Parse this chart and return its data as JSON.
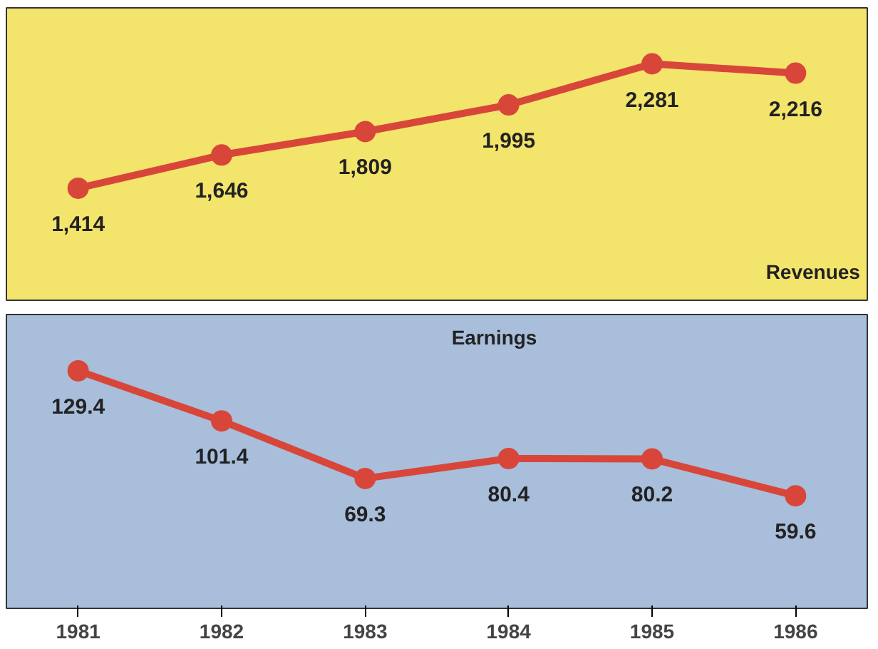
{
  "chart_data": [
    {
      "type": "line",
      "title": "Revenues",
      "categories": [
        "1981",
        "1982",
        "1983",
        "1984",
        "1985",
        "1986"
      ],
      "values": [
        1414,
        1646,
        1809,
        1995,
        2281,
        2216
      ],
      "value_labels": [
        "1,414",
        "1,646",
        "1,809",
        "1,995",
        "2,281",
        "2,216"
      ],
      "color": "#d8463a",
      "marker": "circle",
      "line_style": "solid",
      "tick_labels": false
    },
    {
      "type": "line",
      "title": "Earnings",
      "categories": [
        "1981",
        "1982",
        "1983",
        "1984",
        "1985",
        "1986"
      ],
      "values": [
        129.4,
        101.4,
        69.3,
        80.4,
        80.2,
        59.6
      ],
      "color": "#d8463a",
      "marker": "circle",
      "line_style": "solid",
      "data_labels": true,
      "tick_labels": "x"
    }
  ]
}
